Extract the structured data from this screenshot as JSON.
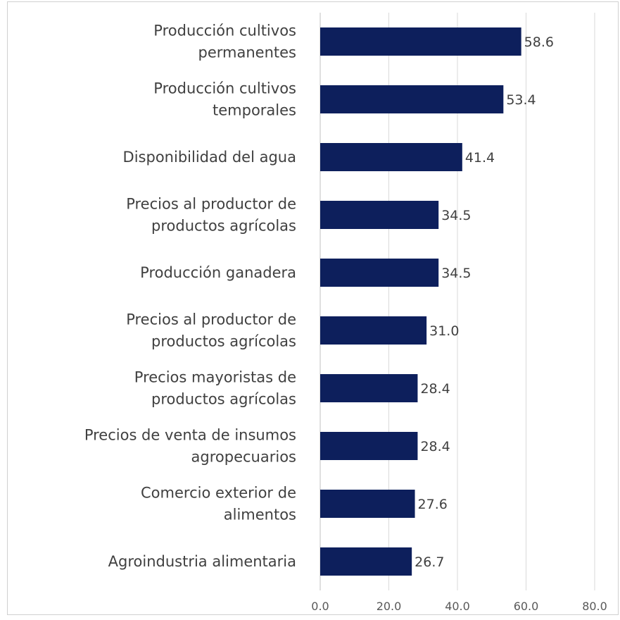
{
  "chart_data": {
    "type": "bar",
    "orientation": "horizontal",
    "categories": [
      [
        "Producción cultivos",
        "permanentes"
      ],
      [
        "Producción cultivos",
        "temporales"
      ],
      [
        "Disponibilidad del agua"
      ],
      [
        "Precios al productor de",
        "productos agrícolas"
      ],
      [
        "Producción ganadera"
      ],
      [
        "Precios al productor de",
        "productos agrícolas"
      ],
      [
        "Precios mayoristas de",
        "productos agrícolas"
      ],
      [
        "Precios de venta de insumos",
        "agropecuarios"
      ],
      [
        "Comercio exterior de",
        "alimentos"
      ],
      [
        "Agroindustria alimentaria"
      ]
    ],
    "values": [
      58.6,
      53.4,
      41.4,
      34.5,
      34.5,
      31.0,
      28.4,
      28.4,
      27.6,
      26.7
    ],
    "data_labels": [
      "58.6",
      "53.4",
      "41.4",
      "34.5",
      "34.5",
      "31.0",
      "28.4",
      "28.4",
      "27.6",
      "26.7"
    ],
    "xlim": [
      0,
      80
    ],
    "x_ticks": [
      "0.0",
      "20.0",
      "40.0",
      "60.0",
      "80.0"
    ],
    "bar_color": "#0d1f5c",
    "grid": true,
    "title": "",
    "xlabel": "",
    "ylabel": ""
  }
}
